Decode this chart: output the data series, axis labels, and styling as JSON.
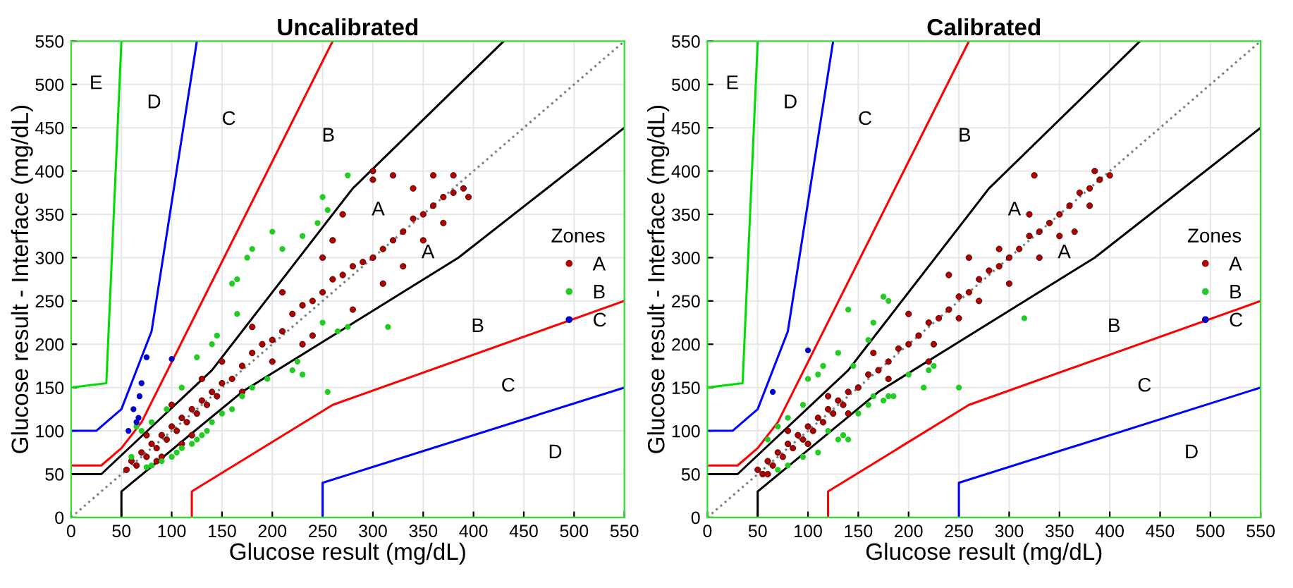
{
  "chart_data": [
    {
      "type": "scatter",
      "title": "Uncalibrated",
      "xlabel": "Glucose result (mg/dL)",
      "ylabel": "Glucose result - Interface (mg/dL)",
      "legend_title": "Zones",
      "legend": "right",
      "grid": true,
      "xlim": [
        0,
        550
      ],
      "ylim": [
        0,
        550
      ],
      "xticks": [
        0,
        50,
        100,
        150,
        200,
        250,
        300,
        350,
        400,
        450,
        500,
        550
      ],
      "yticks": [
        0,
        50,
        100,
        150,
        200,
        250,
        300,
        350,
        400,
        450,
        500,
        550
      ],
      "series": [
        {
          "type": "line",
          "line_style": "dotted",
          "color": "#808080",
          "x": [
            0,
            550
          ],
          "values": [
            0,
            550
          ]
        },
        {
          "type": "line",
          "line_style": "solid",
          "color": "#000000",
          "x": [
            0,
            30,
            140,
            280,
            430
          ],
          "values": [
            50,
            50,
            170,
            380,
            550
          ]
        },
        {
          "type": "line",
          "line_style": "solid",
          "color": "#000000",
          "x": [
            50,
            50,
            170,
            385,
            550
          ],
          "values": [
            0,
            30,
            145,
            300,
            450
          ]
        },
        {
          "type": "line",
          "line_style": "solid",
          "color": "#ff0000",
          "x": [
            0,
            30,
            50,
            70,
            260
          ],
          "values": [
            60,
            60,
            80,
            110,
            550
          ]
        },
        {
          "type": "line",
          "line_style": "solid",
          "color": "#ff0000",
          "x": [
            120,
            120,
            260,
            550
          ],
          "values": [
            0,
            30,
            130,
            250
          ]
        },
        {
          "type": "line",
          "line_style": "solid",
          "color": "#0000ff",
          "x": [
            0,
            25,
            50,
            80,
            125
          ],
          "values": [
            100,
            100,
            125,
            215,
            550
          ]
        },
        {
          "type": "line",
          "line_style": "solid",
          "color": "#0000ff",
          "x": [
            250,
            250,
            550
          ],
          "values": [
            0,
            40,
            150
          ]
        },
        {
          "type": "line",
          "line_style": "solid",
          "color": "#00dd00",
          "x": [
            0,
            35,
            50
          ],
          "values": [
            150,
            155,
            550
          ]
        },
        {
          "name": "A",
          "color": "#b00000",
          "x": [
            55,
            60,
            65,
            70,
            75,
            80,
            85,
            90,
            95,
            100,
            105,
            110,
            115,
            120,
            125,
            130,
            135,
            140,
            145,
            150,
            160,
            170,
            180,
            190,
            200,
            210,
            220,
            230,
            240,
            250,
            260,
            270,
            280,
            290,
            300,
            310,
            320,
            330,
            340,
            350,
            360,
            370,
            380,
            390,
            75,
            90,
            100,
            120,
            130,
            180,
            200,
            210,
            230,
            260,
            270,
            280,
            300,
            310,
            320,
            330,
            340,
            350,
            360,
            370,
            380,
            395,
            300,
            250,
            240,
            170,
            150,
            110,
            85
          ],
          "values": [
            55,
            65,
            60,
            75,
            70,
            85,
            80,
            95,
            90,
            105,
            100,
            115,
            110,
            125,
            120,
            135,
            130,
            145,
            140,
            155,
            160,
            175,
            190,
            200,
            205,
            215,
            235,
            245,
            250,
            260,
            275,
            280,
            290,
            295,
            300,
            310,
            320,
            330,
            345,
            350,
            360,
            370,
            375,
            380,
            95,
            70,
            130,
            95,
            160,
            220,
            180,
            260,
            200,
            320,
            350,
            240,
            390,
            270,
            395,
            290,
            380,
            320,
            395,
            340,
            395,
            370,
            400,
            300,
            210,
            145,
            180,
            85,
            65
          ]
        },
        {
          "name": "B",
          "color": "#22cc22",
          "x": [
            80,
            90,
            100,
            105,
            110,
            120,
            125,
            130,
            135,
            140,
            150,
            160,
            170,
            180,
            195,
            220,
            230,
            225,
            250,
            255,
            265,
            275,
            315,
            65,
            70,
            80,
            95,
            110,
            125,
            140,
            145,
            165,
            160,
            165,
            175,
            180,
            200,
            210,
            230,
            245,
            250,
            255,
            275,
            60,
            75
          ],
          "values": [
            60,
            65,
            70,
            75,
            80,
            85,
            90,
            95,
            100,
            110,
            120,
            125,
            140,
            150,
            160,
            170,
            165,
            180,
            225,
            145,
            215,
            220,
            220,
            105,
            100,
            110,
            125,
            150,
            185,
            200,
            210,
            235,
            270,
            275,
            300,
            310,
            330,
            310,
            325,
            340,
            370,
            355,
            395,
            70,
            58
          ]
        },
        {
          "name": "C",
          "color": "#0000cc",
          "x": [
            57,
            62,
            65,
            67,
            68,
            70,
            75,
            100
          ],
          "values": [
            100,
            125,
            110,
            115,
            140,
            155,
            185,
            183
          ]
        }
      ],
      "annotations": [
        "A",
        "A",
        "B",
        "B",
        "C",
        "C",
        "D",
        "D",
        "E"
      ]
    },
    {
      "type": "scatter",
      "title": "Calibrated",
      "xlabel": "Glucose result (mg/dL)",
      "ylabel": "Glucose result - Interface (mg/dL)",
      "legend_title": "Zones",
      "legend": "right",
      "grid": true,
      "xlim": [
        0,
        550
      ],
      "ylim": [
        0,
        550
      ],
      "xticks": [
        0,
        50,
        100,
        150,
        200,
        250,
        300,
        350,
        400,
        450,
        500,
        550
      ],
      "yticks": [
        0,
        50,
        100,
        150,
        200,
        250,
        300,
        350,
        400,
        450,
        500,
        550
      ],
      "series": [
        {
          "type": "line",
          "line_style": "dotted",
          "color": "#808080",
          "x": [
            0,
            550
          ],
          "values": [
            0,
            550
          ]
        },
        {
          "type": "line",
          "line_style": "solid",
          "color": "#000000",
          "x": [
            0,
            30,
            140,
            280,
            430
          ],
          "values": [
            50,
            50,
            170,
            380,
            550
          ]
        },
        {
          "type": "line",
          "line_style": "solid",
          "color": "#000000",
          "x": [
            50,
            50,
            170,
            385,
            550
          ],
          "values": [
            0,
            30,
            145,
            300,
            450
          ]
        },
        {
          "type": "line",
          "line_style": "solid",
          "color": "#ff0000",
          "x": [
            0,
            30,
            50,
            70,
            260
          ],
          "values": [
            60,
            60,
            80,
            110,
            550
          ]
        },
        {
          "type": "line",
          "line_style": "solid",
          "color": "#ff0000",
          "x": [
            120,
            120,
            260,
            550
          ],
          "values": [
            0,
            30,
            130,
            250
          ]
        },
        {
          "type": "line",
          "line_style": "solid",
          "color": "#0000ff",
          "x": [
            0,
            25,
            50,
            80,
            125
          ],
          "values": [
            100,
            100,
            125,
            215,
            550
          ]
        },
        {
          "type": "line",
          "line_style": "solid",
          "color": "#0000ff",
          "x": [
            250,
            250,
            550
          ],
          "values": [
            0,
            40,
            150
          ]
        },
        {
          "type": "line",
          "line_style": "solid",
          "color": "#00dd00",
          "x": [
            0,
            35,
            50
          ],
          "values": [
            150,
            155,
            550
          ]
        },
        {
          "name": "A",
          "color": "#b00000",
          "x": [
            50,
            55,
            60,
            65,
            70,
            75,
            80,
            85,
            90,
            95,
            100,
            105,
            110,
            115,
            120,
            125,
            130,
            135,
            140,
            150,
            160,
            170,
            180,
            190,
            200,
            210,
            220,
            230,
            240,
            250,
            260,
            270,
            280,
            290,
            300,
            310,
            320,
            330,
            340,
            350,
            360,
            370,
            380,
            390,
            400,
            60,
            80,
            100,
            120,
            140,
            165,
            180,
            200,
            225,
            240,
            250,
            260,
            270,
            290,
            300,
            320,
            330,
            350,
            365,
            380,
            325,
            385,
            220
          ],
          "values": [
            55,
            50,
            65,
            60,
            75,
            70,
            85,
            80,
            95,
            90,
            105,
            100,
            115,
            110,
            125,
            120,
            135,
            130,
            145,
            150,
            165,
            170,
            180,
            195,
            200,
            210,
            225,
            230,
            240,
            255,
            260,
            275,
            285,
            290,
            300,
            310,
            325,
            330,
            340,
            350,
            360,
            375,
            380,
            390,
            395,
            50,
            100,
            85,
            140,
            120,
            190,
            160,
            235,
            200,
            280,
            230,
            300,
            250,
            310,
            270,
            350,
            300,
            325,
            330,
            360,
            395,
            400,
            180
          ]
        },
        {
          "name": "B",
          "color": "#22cc22",
          "x": [
            70,
            80,
            95,
            110,
            120,
            130,
            135,
            140,
            150,
            160,
            165,
            175,
            180,
            185,
            200,
            215,
            220,
            225,
            250,
            315,
            60,
            70,
            80,
            95,
            100,
            110,
            115,
            130,
            140,
            145,
            160,
            165,
            175,
            180
          ],
          "values": [
            55,
            60,
            70,
            75,
            100,
            90,
            95,
            90,
            120,
            130,
            140,
            135,
            140,
            140,
            165,
            150,
            170,
            175,
            150,
            230,
            90,
            105,
            115,
            130,
            160,
            165,
            175,
            190,
            240,
            175,
            205,
            225,
            255,
            250
          ]
        },
        {
          "name": "C",
          "color": "#0000cc",
          "x": [
            65,
            100
          ],
          "values": [
            145,
            193
          ]
        }
      ],
      "annotations": [
        "A",
        "A",
        "B",
        "B",
        "C",
        "C",
        "D",
        "D",
        "E"
      ]
    }
  ]
}
